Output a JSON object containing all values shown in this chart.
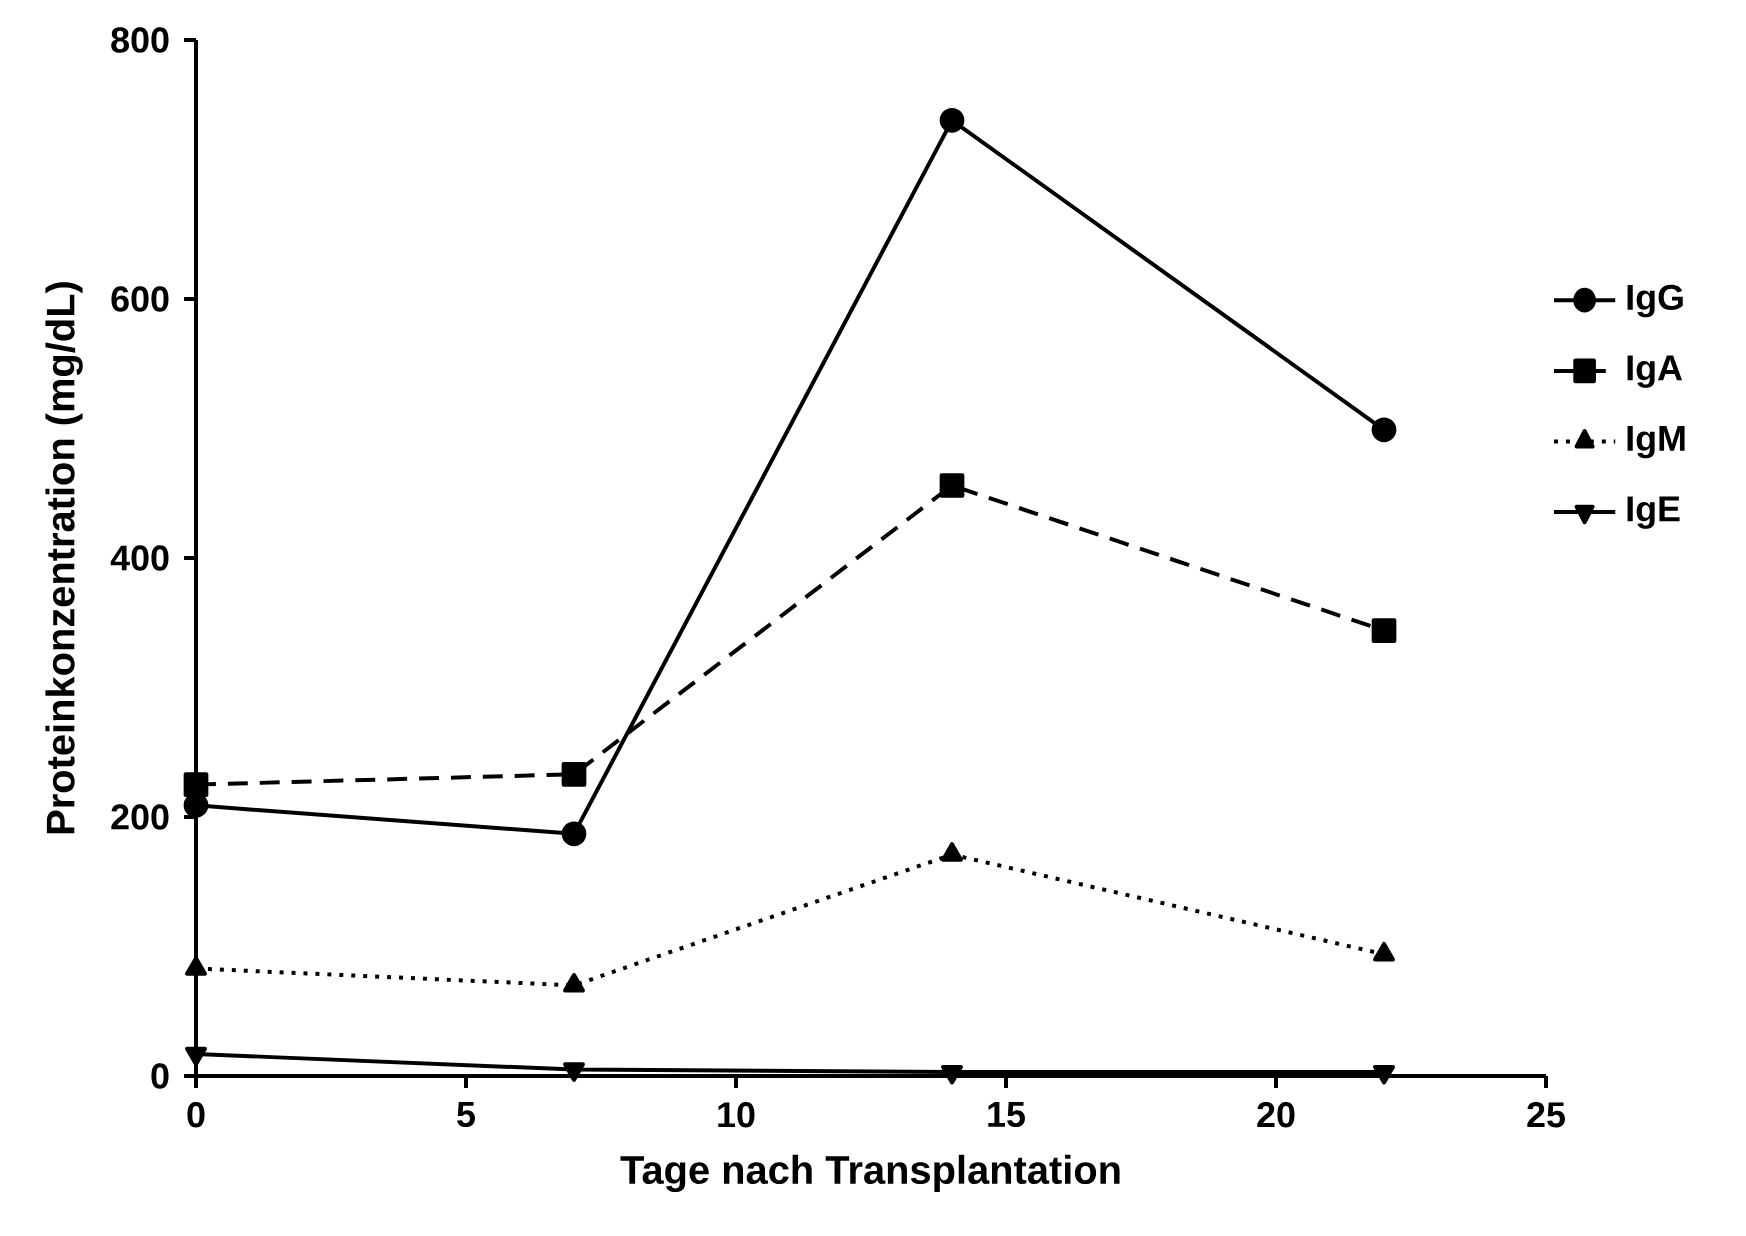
{
  "chart_data": {
    "type": "line",
    "xlabel": "Tage nach Transplantation",
    "ylabel": "Proteinkonzentration (mg/dL)",
    "x": [
      0,
      7,
      14,
      22
    ],
    "series": [
      {
        "name": "IgG",
        "color": "#000000",
        "marker": "circle",
        "line_style": "solid",
        "values": [
          209,
          187,
          738,
          499
        ]
      },
      {
        "name": "IgA",
        "color": "#000000",
        "marker": "square",
        "line_style": "dashed",
        "values": [
          225,
          233,
          456,
          344
        ]
      },
      {
        "name": "IgM",
        "color": "#000000",
        "marker": "triangle",
        "line_style": "dotted",
        "values": [
          83,
          70,
          171,
          94
        ]
      },
      {
        "name": "IgE",
        "color": "#000000",
        "marker": "triangle-down",
        "line_style": "solid",
        "values": [
          17,
          5,
          3,
          3
        ]
      }
    ],
    "xlim": [
      0,
      25
    ],
    "xticks": [
      0,
      5,
      10,
      15,
      20,
      25
    ],
    "ylim": [
      0,
      800
    ],
    "yticks": [
      0,
      200,
      400,
      600,
      800
    ],
    "grid": false,
    "legend": "right"
  }
}
